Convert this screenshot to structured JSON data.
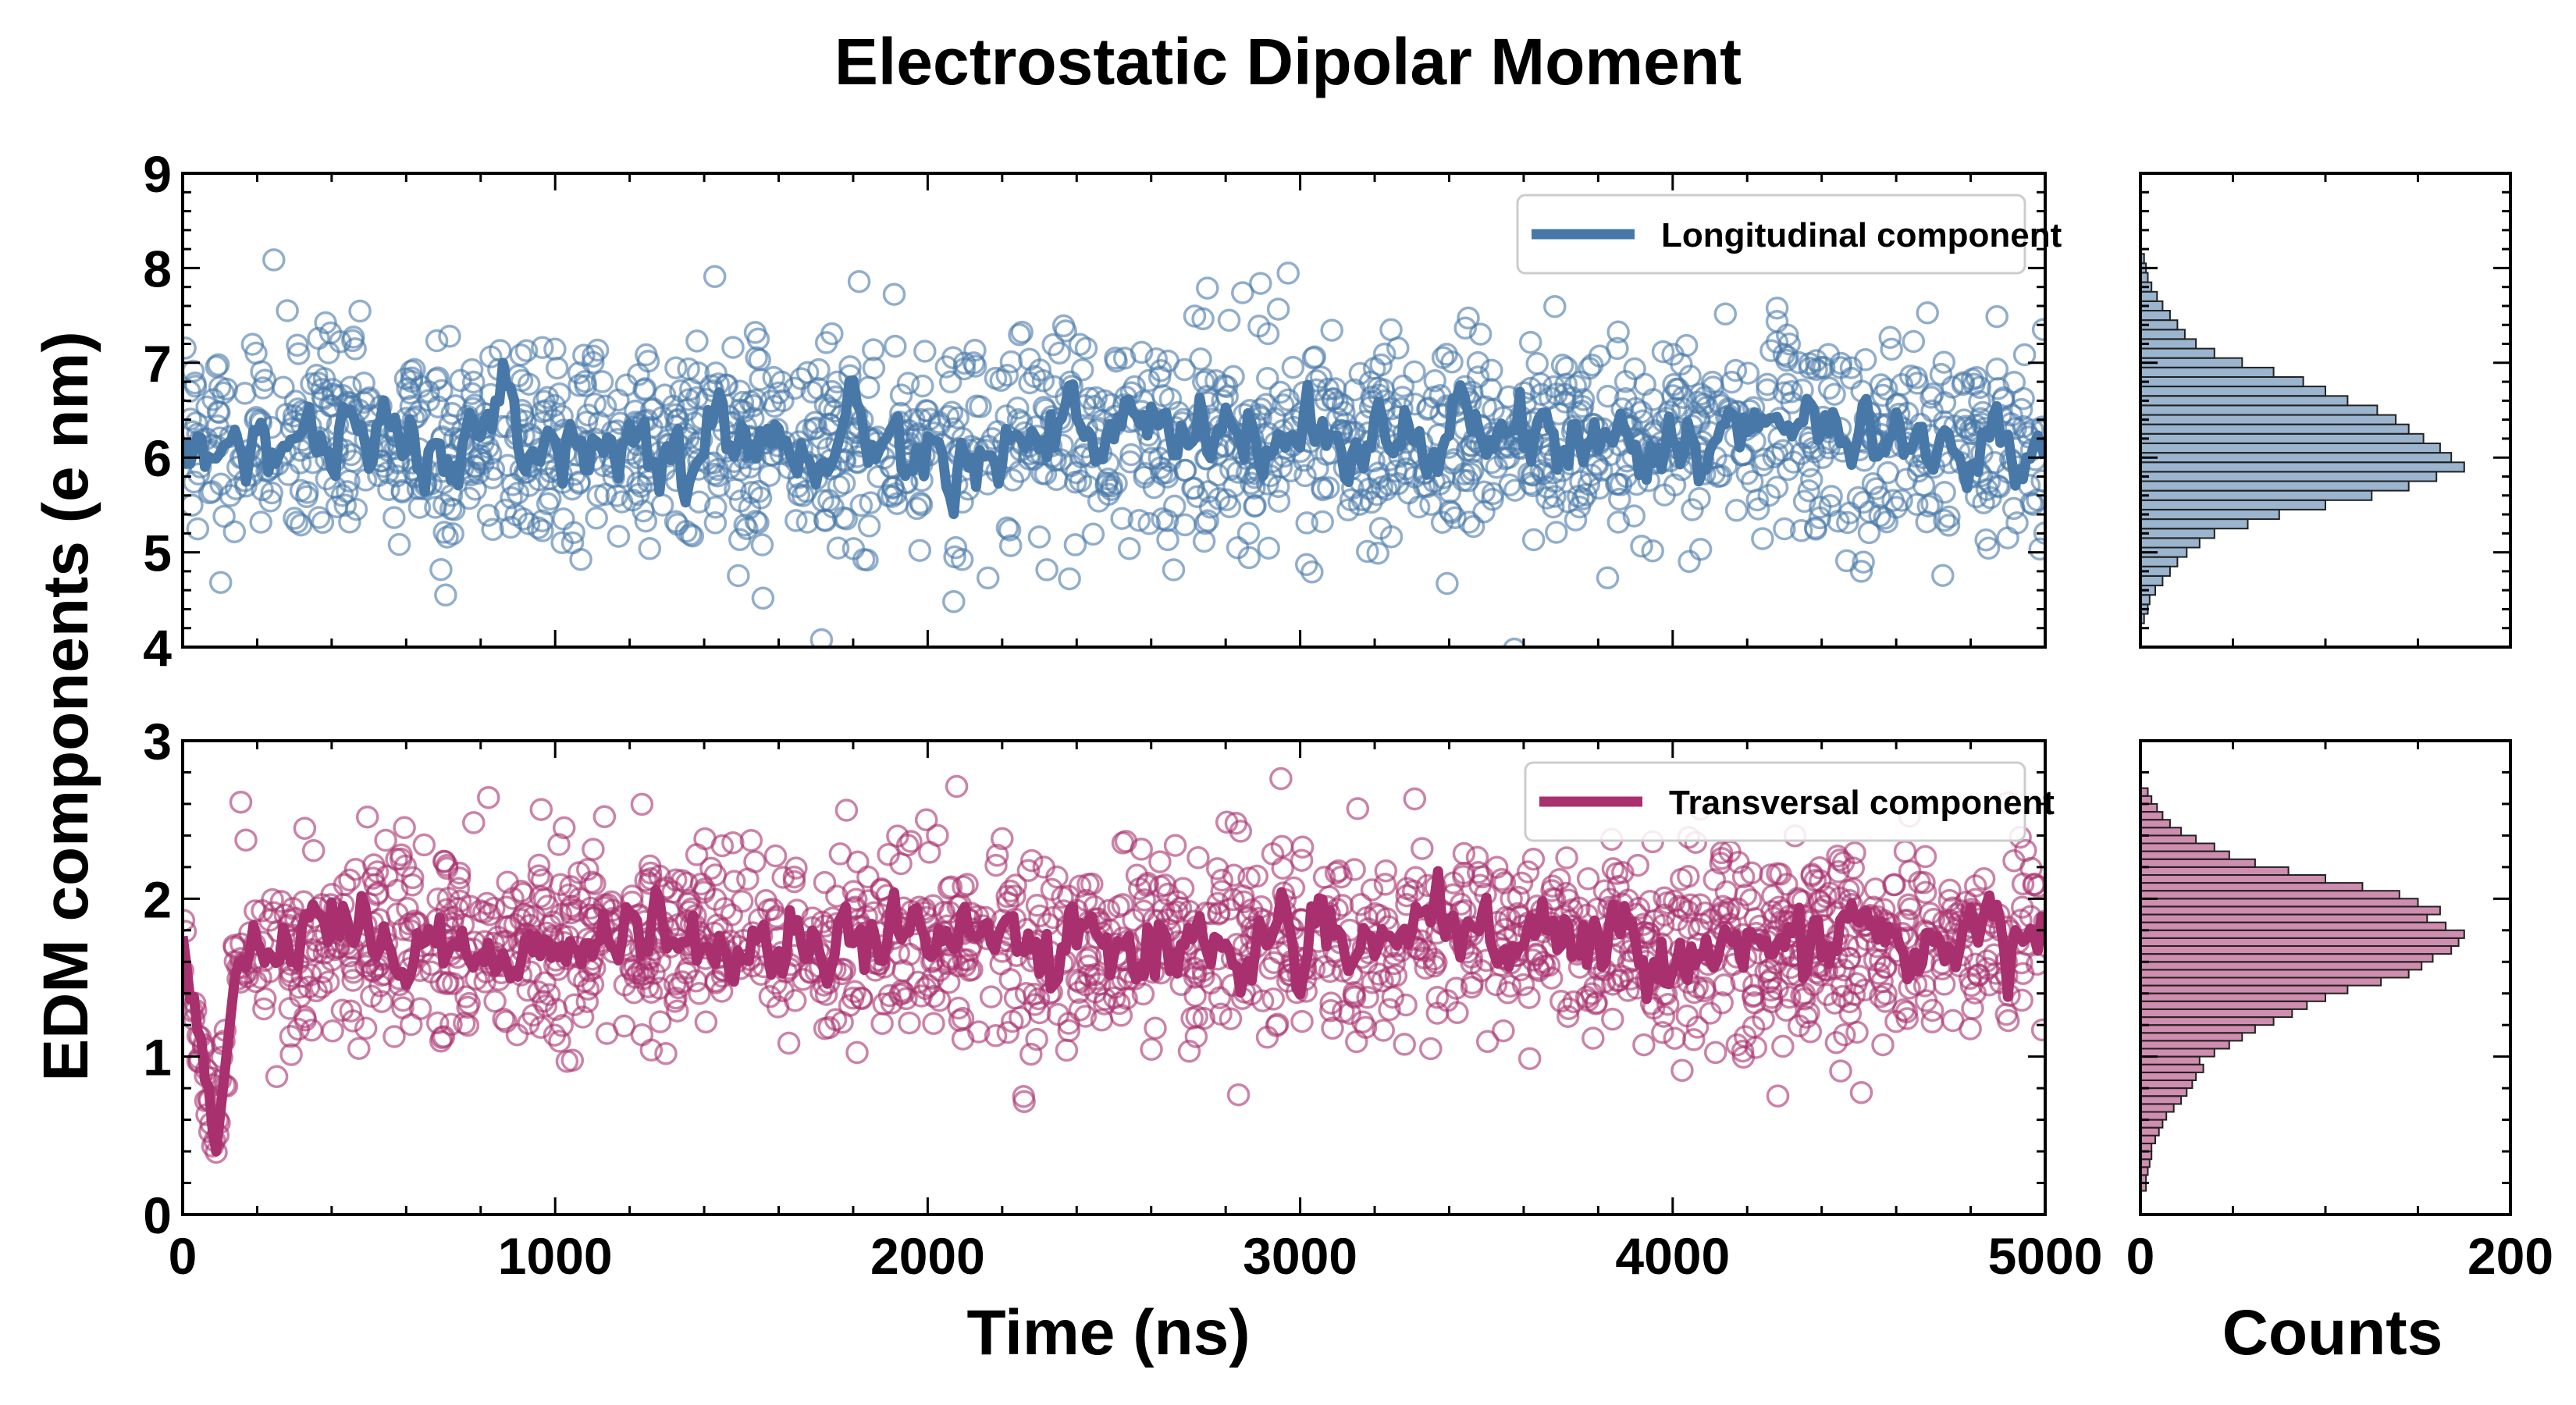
{
  "chart_data": {
    "type": "scatter",
    "title": "Electrostatic Dipolar Moment",
    "ylabel": "EDM components (e nm)",
    "xlabel": "Time (ns)",
    "hist_xlabel": "Counts",
    "xlim": [
      0,
      5000
    ],
    "xticks": [
      "0",
      "1000",
      "2000",
      "3000",
      "4000",
      "5000"
    ],
    "hist_xlim": [
      0,
      200
    ],
    "hist_xticks": [
      "0",
      "200"
    ],
    "panels": [
      {
        "name": "Longitudinal component",
        "legend": "Longitudinal component",
        "color": "#4878a8",
        "ylim": [
          4,
          9
        ],
        "yticks": [
          "4",
          "5",
          "6",
          "7",
          "8",
          "9"
        ],
        "scatter_mean": 6.2,
        "scatter_sd": 0.55,
        "scatter_count": 1600,
        "running_mean_level": 6.2,
        "running_mean_amplitude": 0.22,
        "histogram": {
          "bin_width": 0.1,
          "bin_centers": [
            4.3,
            4.4,
            4.5,
            4.6,
            4.7,
            4.8,
            4.9,
            5.0,
            5.1,
            5.2,
            5.3,
            5.4,
            5.5,
            5.6,
            5.7,
            5.8,
            5.9,
            6.0,
            6.1,
            6.2,
            6.3,
            6.4,
            6.5,
            6.6,
            6.7,
            6.8,
            6.9,
            7.0,
            7.1,
            7.2,
            7.3,
            7.4,
            7.5,
            7.6,
            7.7,
            7.8,
            7.9,
            8.0,
            8.1
          ],
          "counts": [
            2,
            4,
            5,
            8,
            12,
            16,
            20,
            25,
            32,
            40,
            58,
            75,
            100,
            125,
            145,
            160,
            175,
            168,
            162,
            153,
            145,
            138,
            128,
            112,
            100,
            88,
            72,
            55,
            40,
            30,
            24,
            20,
            16,
            12,
            9,
            6,
            4,
            3,
            2
          ]
        }
      },
      {
        "name": "Transversal component",
        "legend": "Transversal component",
        "color": "#a8306e",
        "ylim": [
          0,
          3
        ],
        "yticks": [
          "0",
          "1",
          "2",
          "3"
        ],
        "scatter_mean": 1.72,
        "scatter_sd": 0.32,
        "scatter_count": 1600,
        "running_mean_level": 1.72,
        "running_mean_amplitude": 0.13,
        "initial_transient": {
          "start": 1.72,
          "dip": 0.4,
          "dip_time": 90,
          "recover_time": 150
        },
        "histogram": {
          "bin_width": 0.05,
          "bin_centers": [
            0.175,
            0.225,
            0.275,
            0.325,
            0.375,
            0.425,
            0.475,
            0.525,
            0.575,
            0.625,
            0.675,
            0.725,
            0.775,
            0.825,
            0.875,
            0.925,
            0.975,
            1.025,
            1.075,
            1.125,
            1.175,
            1.225,
            1.275,
            1.325,
            1.375,
            1.425,
            1.475,
            1.525,
            1.575,
            1.625,
            1.675,
            1.725,
            1.775,
            1.825,
            1.875,
            1.925,
            1.975,
            2.025,
            2.075,
            2.125,
            2.175,
            2.225,
            2.275,
            2.325,
            2.375,
            2.425,
            2.475,
            2.525,
            2.575,
            2.625,
            2.675
          ],
          "counts": [
            3,
            3,
            4,
            5,
            6,
            6,
            8,
            10,
            12,
            14,
            18,
            22,
            25,
            28,
            30,
            34,
            32,
            40,
            48,
            55,
            62,
            72,
            82,
            90,
            100,
            112,
            130,
            145,
            152,
            158,
            168,
            172,
            175,
            165,
            155,
            162,
            150,
            140,
            120,
            100,
            80,
            62,
            48,
            40,
            30,
            22,
            16,
            12,
            9,
            6,
            4
          ]
        }
      }
    ]
  }
}
